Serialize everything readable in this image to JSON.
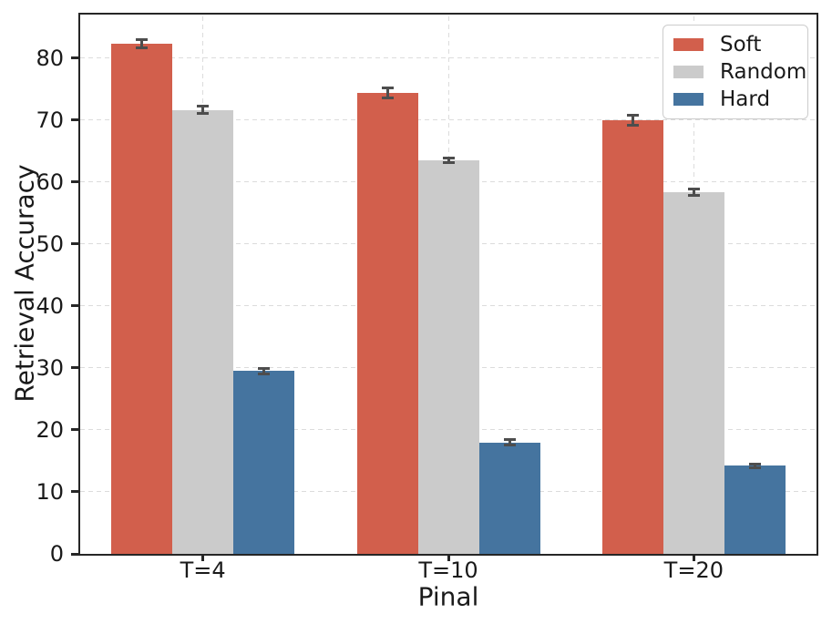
{
  "chart_data": {
    "type": "bar",
    "title": "",
    "xlabel": "Pinal",
    "ylabel": "Retrieval Accuracy",
    "categories": [
      "T=4",
      "T=10",
      "T=20"
    ],
    "series": [
      {
        "name": "Soft",
        "color": "#d25f4c",
        "values": [
          82.3,
          74.4,
          69.9
        ],
        "errors": [
          0.6,
          0.8,
          0.8
        ]
      },
      {
        "name": "Random",
        "color": "#cbcbcb",
        "values": [
          71.6,
          63.5,
          58.4
        ],
        "errors": [
          0.6,
          0.4,
          0.5
        ]
      },
      {
        "name": "Hard",
        "color": "#45749f",
        "values": [
          29.5,
          18.0,
          14.2
        ],
        "errors": [
          0.4,
          0.45,
          0.35
        ]
      }
    ],
    "yticks": [
      0,
      10,
      20,
      30,
      40,
      50,
      60,
      70,
      80
    ],
    "ylim": [
      0,
      87
    ],
    "grid": true,
    "grid_style": "dashed",
    "grid_color": "#dcdcdc",
    "errorbar_color": "#4d4d4d",
    "bar_width_fraction": 0.25,
    "legend_position": "upper right"
  }
}
